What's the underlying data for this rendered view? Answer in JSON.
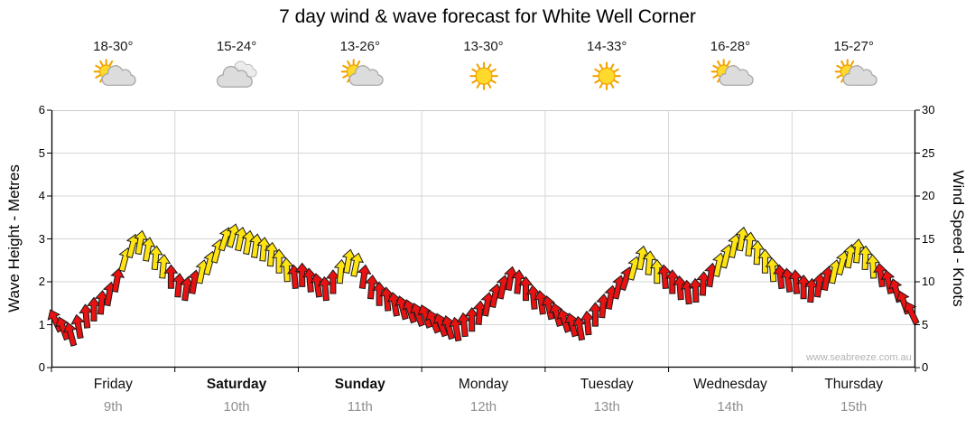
{
  "title": "7 day wind & wave forecast for White Well Corner",
  "watermark": "www.seabreeze.com.au",
  "chart_data": {
    "type": "wind-arrows",
    "title": "7 day wind & wave forecast for White Well Corner",
    "left_axis": {
      "label": "Wave Height - Metres",
      "min": 0,
      "max": 6,
      "ticks": [
        0,
        1,
        2,
        3,
        4,
        5,
        6
      ]
    },
    "right_axis": {
      "label": "Wind Speed - Knots",
      "min": 0,
      "max": 30,
      "ticks": [
        0,
        5,
        10,
        15,
        20,
        25,
        30
      ]
    },
    "grid": true,
    "legend": "none",
    "arrow_colors": {
      "light_wind_red": "#e81212",
      "fresh_wind_yellow": "#ffe412"
    },
    "color_threshold_knots": 11,
    "days": [
      {
        "name": "Friday",
        "date": "9th",
        "temp": "18-30°",
        "icon": "partly-cloudy",
        "bold": false
      },
      {
        "name": "Saturday",
        "date": "10th",
        "temp": "15-24°",
        "icon": "cloudy",
        "bold": true
      },
      {
        "name": "Sunday",
        "date": "11th",
        "temp": "13-26°",
        "icon": "partly-cloudy",
        "bold": true
      },
      {
        "name": "Monday",
        "date": "12th",
        "temp": "13-30°",
        "icon": "sunny",
        "bold": false
      },
      {
        "name": "Tuesday",
        "date": "13th",
        "temp": "14-33°",
        "icon": "sunny",
        "bold": false
      },
      {
        "name": "Wednesday",
        "date": "14th",
        "temp": "16-28°",
        "icon": "partly-cloudy",
        "bold": false
      },
      {
        "name": "Thursday",
        "date": "15th",
        "temp": "15-27°",
        "icon": "partly-cloudy",
        "bold": false
      }
    ],
    "wind_knots": [
      [
        5.5,
        4.6,
        3.9,
        4.8,
        6.0,
        6.8,
        7.6,
        8.6,
        10.2,
        12.6,
        14.2,
        14.6,
        13.8,
        12.8,
        11.8,
        10.6
      ],
      [
        9.6,
        9.2,
        10.0,
        11.2,
        12.2,
        13.6,
        15.0,
        15.4,
        15.0,
        14.6,
        14.2,
        13.8,
        13.2,
        12.4,
        11.4,
        10.6
      ],
      [
        10.8,
        10.2,
        9.6,
        9.2,
        10.0,
        11.2,
        12.4,
        12.0,
        10.6,
        9.4,
        8.6,
        8.0,
        7.4,
        7.0,
        6.6,
        6.2
      ],
      [
        6.0,
        5.4,
        5.0,
        4.7,
        4.5,
        5.0,
        5.6,
        6.4,
        7.4,
        8.4,
        9.4,
        10.4,
        10.0,
        9.2,
        8.2,
        7.6
      ],
      [
        7.0,
        6.2,
        5.5,
        5.0,
        4.6,
        5.2,
        6.2,
        7.2,
        8.2,
        9.4,
        10.4,
        11.6,
        12.8,
        12.2,
        11.2,
        10.6
      ],
      [
        10.0,
        9.3,
        8.8,
        9.0,
        9.8,
        10.8,
        12.0,
        13.0,
        14.2,
        15.0,
        14.4,
        13.4,
        12.4,
        11.4,
        10.6,
        10.2
      ],
      [
        10.0,
        9.4,
        9.0,
        9.6,
        10.4,
        11.2,
        12.2,
        13.0,
        13.6,
        12.8,
        11.8,
        10.8,
        10.0,
        9.0,
        7.6,
        6.4
      ]
    ],
    "wind_dir_deg": [
      [
        -25,
        -20,
        -15,
        -10,
        -5,
        0,
        5,
        10,
        10,
        15,
        15,
        10,
        10,
        5,
        5,
        0
      ],
      [
        5,
        8,
        10,
        12,
        15,
        15,
        18,
        15,
        12,
        10,
        8,
        5,
        5,
        0,
        -3,
        -5
      ],
      [
        0,
        -5,
        -8,
        -5,
        0,
        5,
        10,
        12,
        8,
        5,
        0,
        -5,
        -10,
        -15,
        -18,
        -20
      ],
      [
        -20,
        -22,
        -20,
        -15,
        -10,
        -5,
        0,
        5,
        10,
        12,
        12,
        10,
        5,
        0,
        -5,
        -8
      ],
      [
        -12,
        -16,
        -18,
        -15,
        -10,
        -5,
        0,
        5,
        10,
        14,
        18,
        15,
        10,
        5,
        0,
        -5
      ],
      [
        0,
        -4,
        -6,
        -2,
        3,
        8,
        12,
        14,
        12,
        10,
        6,
        3,
        0,
        -4,
        -6,
        -8
      ],
      [
        -4,
        0,
        4,
        8,
        10,
        12,
        14,
        10,
        6,
        2,
        -3,
        -8,
        -12,
        -16,
        -20,
        -25
      ]
    ]
  }
}
